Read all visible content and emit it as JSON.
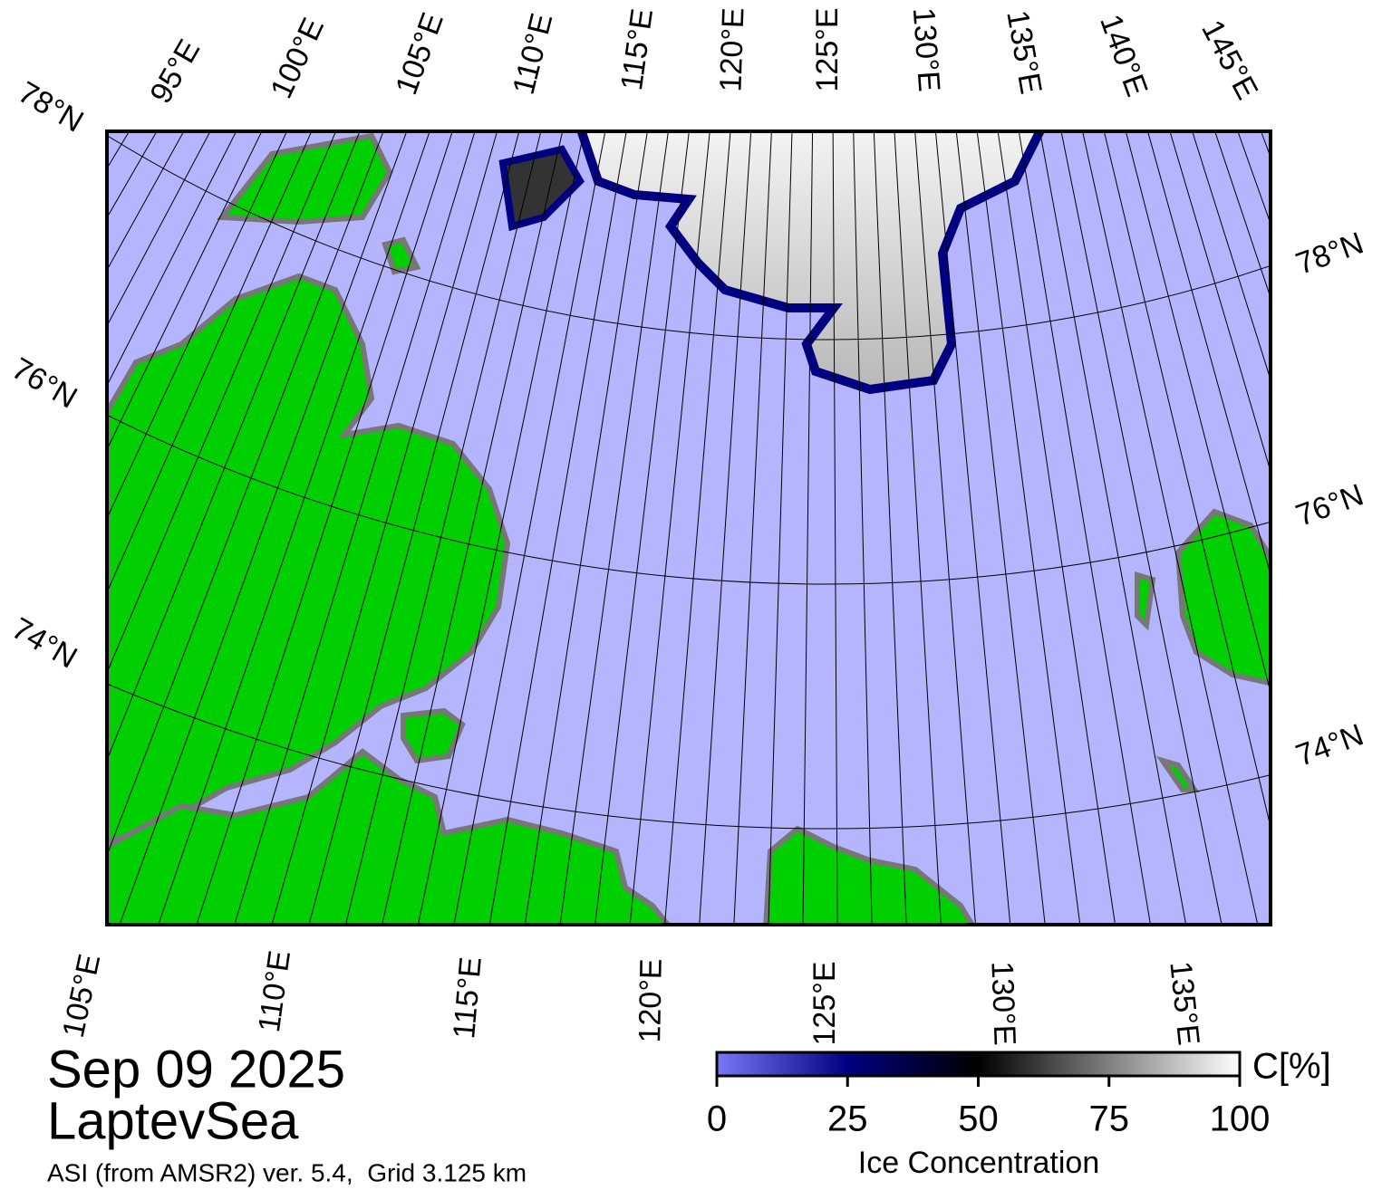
{
  "map": {
    "top_labels": [
      "95°E",
      "100°E",
      "105°E",
      "110°E",
      "115°E",
      "120°E",
      "125°E",
      "130°E",
      "135°E",
      "140°E",
      "145°E"
    ],
    "left_labels": [
      "78°N",
      "76°N",
      "74°N"
    ],
    "right_labels": [
      "78°N",
      "76°N",
      "74°N"
    ],
    "bottom_labels": [
      "105°E",
      "110°E",
      "115°E",
      "120°E",
      "125°E",
      "130°E",
      "135°E"
    ],
    "date": "Sep 09 2025",
    "region": "LaptevSea",
    "source": "ASI (from AMSR2) ver. 5.4,  Grid 3.125 km"
  },
  "colorbar": {
    "lim": [
      0,
      100
    ],
    "ticks": [
      0,
      25,
      50,
      75,
      100
    ],
    "unit": "C[%]",
    "title": "Ice Concentration"
  }
}
